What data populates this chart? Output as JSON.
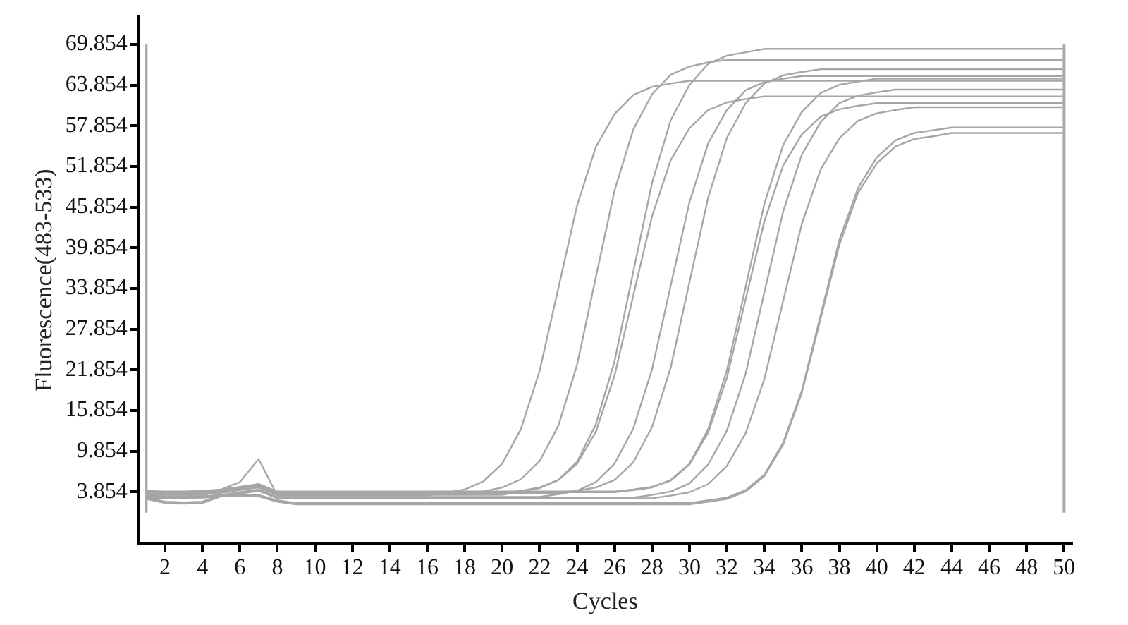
{
  "chart_data": {
    "type": "line",
    "xlabel": "Cycles",
    "ylabel": "Fluorescence(483-533)",
    "grid": false,
    "marker": "none",
    "line_style": "solid",
    "xlim": [
      0.6,
      50.4
    ],
    "ylim": [
      -3.8,
      74
    ],
    "xticks": [
      2,
      4,
      6,
      8,
      10,
      12,
      14,
      16,
      18,
      20,
      22,
      24,
      26,
      28,
      30,
      32,
      34,
      36,
      38,
      40,
      42,
      44,
      46,
      48,
      50
    ],
    "yticks": [
      3.854,
      9.854,
      15.854,
      21.854,
      27.854,
      33.854,
      39.854,
      45.854,
      51.854,
      57.854,
      63.854,
      69.854
    ],
    "x": [
      1,
      2,
      3,
      4,
      5,
      6,
      7,
      8,
      9,
      10,
      11,
      12,
      13,
      14,
      15,
      16,
      17,
      18,
      19,
      20,
      21,
      22,
      23,
      24,
      25,
      26,
      27,
      28,
      29,
      30,
      31,
      32,
      33,
      34,
      35,
      36,
      37,
      38,
      39,
      40,
      41,
      42,
      43,
      44,
      45,
      46,
      47,
      48,
      49,
      50
    ],
    "ref_lines": [
      {
        "axis": "x",
        "value": 1,
        "color": "#aaaaaa"
      },
      {
        "axis": "x",
        "value": 50,
        "color": "#aaaaaa"
      }
    ],
    "series": [
      {
        "color": "#a6a6a6",
        "values": [
          3.3,
          3.2,
          3.2,
          3.3,
          4.2,
          5.3,
          8.7,
          3.3,
          3.3,
          3.3,
          3.3,
          3.3,
          3.3,
          3.3,
          3.3,
          3.3,
          3.7,
          4.2,
          5.4,
          8.0,
          13.1,
          21.7,
          33.9,
          46.1,
          54.7,
          59.6,
          62.4,
          63.6,
          64.1,
          64.5,
          64.5,
          64.5,
          64.5,
          64.5,
          64.5,
          64.5,
          64.5,
          64.5,
          64.5,
          64.5,
          64.5,
          64.5,
          64.5,
          64.5,
          64.5,
          64.5,
          64.5,
          64.5,
          64.5,
          64.5
        ]
      },
      {
        "color": "#a6a6a6",
        "values": [
          3.6,
          3.5,
          3.5,
          3.6,
          3.8,
          4.2,
          4.6,
          3.5,
          3.5,
          3.5,
          3.5,
          3.5,
          3.5,
          3.5,
          3.5,
          3.5,
          3.5,
          3.5,
          3.9,
          4.5,
          5.7,
          8.4,
          13.6,
          22.6,
          35.5,
          48.3,
          57.3,
          62.5,
          65.4,
          66.6,
          67.2,
          67.6,
          67.6,
          67.6,
          67.6,
          67.6,
          67.6,
          67.6,
          67.6,
          67.6,
          67.6,
          67.6,
          67.6,
          67.6,
          67.6,
          67.6,
          67.6,
          67.6,
          67.6,
          67.6
        ]
      },
      {
        "color": "#a6a6a6",
        "values": [
          3.5,
          3.4,
          3.4,
          3.5,
          3.7,
          4.1,
          4.5,
          3.4,
          3.4,
          3.4,
          3.4,
          3.4,
          3.4,
          3.4,
          3.4,
          3.4,
          3.4,
          3.4,
          3.4,
          3.4,
          3.9,
          4.4,
          5.6,
          8.3,
          13.8,
          23.1,
          36.3,
          49.4,
          58.7,
          63.9,
          67.0,
          68.2,
          68.7,
          69.2,
          69.2,
          69.2,
          69.2,
          69.2,
          69.2,
          69.2,
          69.2,
          69.2,
          69.2,
          69.2,
          69.2,
          69.2,
          69.2,
          69.2,
          69.2,
          69.2
        ]
      },
      {
        "color": "#a6a6a6",
        "values": [
          3.7,
          3.6,
          3.6,
          3.7,
          3.9,
          4.3,
          4.7,
          3.6,
          3.6,
          3.6,
          3.6,
          3.6,
          3.6,
          3.6,
          3.6,
          3.6,
          3.6,
          3.6,
          3.6,
          3.6,
          4.0,
          4.5,
          5.6,
          8.0,
          12.7,
          21.0,
          32.8,
          44.5,
          52.8,
          57.5,
          60.2,
          61.3,
          61.8,
          62.2,
          62.2,
          62.2,
          62.2,
          62.2,
          62.2,
          62.2,
          62.2,
          62.2,
          62.2,
          62.2,
          62.2,
          62.2,
          62.2,
          62.2,
          62.2,
          62.2
        ]
      },
      {
        "color": "#a6a6a6",
        "values": [
          3.2,
          3.1,
          3.1,
          3.2,
          3.4,
          3.8,
          4.2,
          3.1,
          3.1,
          3.1,
          3.1,
          3.1,
          3.1,
          3.1,
          3.1,
          3.1,
          3.1,
          3.1,
          3.1,
          3.1,
          3.1,
          3.1,
          3.5,
          4.0,
          5.3,
          8.0,
          13.2,
          21.9,
          34.3,
          46.6,
          55.3,
          60.2,
          63.1,
          64.3,
          64.8,
          65.2,
          65.2,
          65.2,
          65.2,
          65.2,
          65.2,
          65.2,
          65.2,
          65.2,
          65.2,
          65.2,
          65.2,
          65.2,
          65.2,
          65.2
        ]
      },
      {
        "color": "#a6a6a6",
        "values": [
          3.8,
          3.7,
          3.7,
          3.8,
          4.0,
          4.4,
          4.8,
          3.7,
          3.7,
          3.7,
          3.7,
          3.7,
          3.7,
          3.7,
          3.7,
          3.7,
          3.7,
          3.7,
          3.7,
          3.7,
          3.7,
          3.7,
          3.7,
          4.0,
          4.5,
          5.6,
          8.2,
          13.4,
          22.2,
          34.8,
          47.3,
          56.1,
          61.2,
          64.1,
          65.3,
          65.8,
          66.2,
          66.2,
          66.2,
          66.2,
          66.2,
          66.2,
          66.2,
          66.2,
          66.2,
          66.2,
          66.2,
          66.2,
          66.2,
          66.2
        ]
      },
      {
        "color": "#a6a6a6",
        "values": [
          3.9,
          3.8,
          3.8,
          3.9,
          4.1,
          4.5,
          4.9,
          3.8,
          3.8,
          3.8,
          3.8,
          3.8,
          3.8,
          3.8,
          3.8,
          3.8,
          3.8,
          3.8,
          3.8,
          3.8,
          3.8,
          3.8,
          3.8,
          3.8,
          3.8,
          3.8,
          4.1,
          4.5,
          5.6,
          8.0,
          13.1,
          21.8,
          34.1,
          46.4,
          55.0,
          59.9,
          62.7,
          63.9,
          64.4,
          64.8,
          64.8,
          64.8,
          64.8,
          64.8,
          64.8,
          64.8,
          64.8,
          64.8,
          64.8,
          64.8
        ]
      },
      {
        "color": "#a6a6a6",
        "values": [
          4.0,
          3.9,
          3.9,
          4.0,
          4.2,
          4.6,
          5.0,
          3.9,
          3.9,
          3.9,
          3.9,
          3.9,
          3.9,
          3.9,
          3.9,
          3.9,
          3.9,
          3.9,
          3.9,
          3.9,
          3.9,
          3.9,
          3.9,
          3.9,
          3.9,
          3.9,
          4.2,
          4.6,
          5.5,
          7.9,
          12.6,
          20.7,
          32.3,
          43.8,
          52.0,
          56.6,
          59.2,
          60.3,
          60.8,
          61.2,
          61.2,
          61.2,
          61.2,
          61.2,
          61.2,
          61.2,
          61.2,
          61.2,
          61.2,
          61.2
        ]
      },
      {
        "color": "#a6a6a6",
        "values": [
          3.1,
          3.0,
          3.0,
          3.1,
          3.3,
          3.7,
          4.1,
          3.0,
          3.0,
          3.0,
          3.0,
          3.0,
          3.0,
          3.0,
          3.0,
          3.0,
          3.0,
          3.0,
          3.0,
          3.0,
          3.0,
          3.0,
          3.0,
          3.0,
          3.0,
          3.0,
          3.0,
          3.4,
          3.9,
          5.1,
          7.9,
          12.9,
          21.3,
          33.3,
          45.2,
          53.6,
          58.4,
          61.2,
          62.3,
          62.8,
          63.2,
          63.2,
          63.2,
          63.2,
          63.2,
          63.2,
          63.2,
          63.2,
          63.2,
          63.2
        ]
      },
      {
        "color": "#a6a6a6",
        "values": [
          3.0,
          2.9,
          2.9,
          3.0,
          3.2,
          3.6,
          4.0,
          2.9,
          2.9,
          2.9,
          2.9,
          2.9,
          2.9,
          2.9,
          2.9,
          2.9,
          2.9,
          2.9,
          2.9,
          2.9,
          2.9,
          2.9,
          2.9,
          2.9,
          2.9,
          2.9,
          2.9,
          2.9,
          3.3,
          3.8,
          5.0,
          7.7,
          12.5,
          20.5,
          32.0,
          43.4,
          51.4,
          56.0,
          58.6,
          59.7,
          60.2,
          60.6,
          60.6,
          60.6,
          60.6,
          60.6,
          60.6,
          60.6,
          60.6,
          60.6
        ]
      },
      {
        "color": "#a6a6a6",
        "values": [
          3.0,
          2.4,
          2.3,
          2.4,
          3.4,
          3.5,
          3.4,
          2.6,
          2.2,
          2.2,
          2.2,
          2.2,
          2.2,
          2.2,
          2.2,
          2.2,
          2.2,
          2.2,
          2.2,
          2.2,
          2.2,
          2.2,
          2.2,
          2.2,
          2.2,
          2.2,
          2.2,
          2.2,
          2.2,
          2.2,
          2.6,
          3.0,
          4.1,
          6.4,
          11.1,
          18.8,
          29.9,
          41.0,
          48.7,
          53.2,
          55.7,
          56.8,
          57.2,
          57.6,
          57.6,
          57.6,
          57.6,
          57.6,
          57.6,
          57.6
        ]
      },
      {
        "color": "#a6a6a6",
        "values": [
          2.8,
          2.2,
          2.1,
          2.2,
          3.2,
          3.3,
          3.2,
          2.4,
          2.0,
          2.0,
          2.0,
          2.0,
          2.0,
          2.0,
          2.0,
          2.0,
          2.0,
          2.0,
          2.0,
          2.0,
          2.0,
          2.0,
          2.0,
          2.0,
          2.0,
          2.0,
          2.0,
          2.0,
          2.0,
          2.0,
          2.4,
          2.8,
          3.9,
          6.2,
          10.8,
          18.5,
          29.4,
          40.3,
          48.0,
          52.3,
          54.8,
          55.9,
          56.3,
          56.8,
          56.8,
          56.8,
          56.8,
          56.8,
          56.8,
          56.8
        ]
      }
    ]
  }
}
